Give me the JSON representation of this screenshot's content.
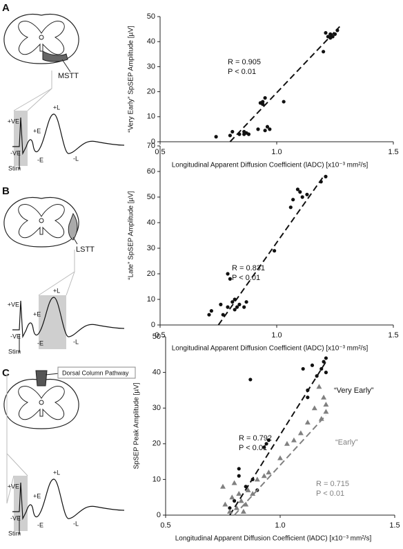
{
  "panels": [
    {
      "letter": "A",
      "diagram": {
        "tract": "MSTT",
        "labels": [
          "+VE",
          "+E",
          "-VE",
          "-E",
          "+L",
          "-L",
          "Stim"
        ]
      }
    },
    {
      "letter": "B",
      "diagram": {
        "tract": "LSTT",
        "labels": [
          "+VE",
          "+E",
          "-VE",
          "-E",
          "+L",
          "-L",
          "Stim"
        ]
      }
    },
    {
      "letter": "C",
      "diagram": {
        "tract": "Dorsal Column Pathway",
        "labels": [
          "+VE",
          "+E",
          "-VE",
          "-E",
          "+L",
          "-L",
          "Stim"
        ]
      }
    }
  ],
  "chart_data": [
    {
      "type": "scatter",
      "x_label": "Longitudinal Apparent Diffusion Coefficient (lADC) [x10⁻³ mm²/s]",
      "y_label": "“Very Early” SpSEP Amplitude [µV]",
      "xlim": [
        0.5,
        1.5
      ],
      "xticks": [
        0.5,
        {
          "value": 1,
          "label": "1.0"
        },
        1.5
      ],
      "ylim": [
        0,
        50
      ],
      "yticks": [
        0,
        10,
        20,
        30,
        40,
        50
      ],
      "annotations": [
        "R = 0.905",
        "P < 0.01"
      ],
      "series": [
        {
          "color": "#111111",
          "marker": "circle",
          "x": [
            0.74,
            0.8,
            0.81,
            0.84,
            0.86,
            0.86,
            0.87,
            0.88,
            0.92,
            0.93,
            0.94,
            0.94,
            0.95,
            0.95,
            0.96,
            0.97,
            1.03,
            1.2,
            1.21,
            1.22,
            1.23,
            1.24,
            1.25,
            1.26,
            1.23
          ],
          "values": [
            2,
            2.5,
            4,
            3,
            4,
            3,
            3.5,
            3,
            5,
            15.5,
            16,
            15,
            17.5,
            4.5,
            6,
            5,
            16,
            36,
            43.5,
            42,
            43,
            42,
            43,
            44.5,
            41.5
          ],
          "fit_x": [
            0.8,
            1.27
          ],
          "fit_y": [
            0,
            46
          ]
        }
      ]
    },
    {
      "type": "scatter",
      "x_label": "Longitudinal Apparent Diffusion Coefficient (lADC) [x10⁻³ mm²/s]",
      "y_label": "“Late” SpSEP Amplitude [µV]",
      "xlim": [
        0.5,
        1.5
      ],
      "xticks": [
        0.5,
        {
          "value": 1,
          "label": "1.0"
        },
        1.5
      ],
      "ylim": [
        0,
        70
      ],
      "yticks": [
        0,
        10,
        20,
        30,
        40,
        50,
        60,
        70
      ],
      "annotations": [
        "R = 0.831",
        "P < 0.01"
      ],
      "series": [
        {
          "color": "#111111",
          "marker": "circle",
          "x": [
            0.71,
            0.72,
            0.76,
            0.77,
            0.79,
            0.79,
            0.8,
            0.81,
            0.82,
            0.82,
            0.83,
            0.84,
            0.86,
            0.87,
            0.99,
            1.06,
            1.07,
            1.09,
            1.1,
            1.11,
            1.13,
            1.19,
            1.21
          ],
          "values": [
            4,
            5.5,
            8,
            4,
            7,
            20,
            18,
            9,
            10,
            6,
            7,
            8,
            7,
            9,
            29,
            46,
            49,
            53,
            52,
            50,
            51,
            56,
            58
          ],
          "fit_x": [
            0.75,
            1.2
          ],
          "fit_y": [
            0,
            58
          ]
        }
      ]
    },
    {
      "type": "scatter",
      "x_label": "Longitudinal Apparent Diffusion Coefficient (lADC) [x10⁻³ mm²/s]",
      "y_label": "SpSEP Peak Amplitude [µV]",
      "xlim": [
        0.5,
        1.5
      ],
      "xticks": [
        0.5,
        {
          "value": 1,
          "label": "1.0"
        },
        1.5
      ],
      "ylim": [
        0,
        50
      ],
      "yticks": [
        0,
        10,
        20,
        30,
        40,
        50
      ],
      "series": [
        {
          "name": "“Very Early”",
          "color": "#111111",
          "marker": "circle",
          "annotations": [
            "R = 0.792",
            "P < 0.01"
          ],
          "x": [
            0.78,
            0.8,
            0.82,
            0.82,
            0.85,
            0.87,
            0.88,
            0.9,
            0.93,
            0.94,
            0.95,
            1.1,
            1.12,
            1.12,
            1.14,
            1.16,
            1.18,
            1.19,
            1.2,
            1.2
          ],
          "values": [
            2,
            4,
            11,
            13,
            8,
            38,
            10,
            7,
            19,
            20,
            21,
            41,
            35,
            33,
            42,
            39,
            41,
            43,
            40,
            44
          ],
          "fit_x": [
            0.78,
            1.2
          ],
          "fit_y": [
            0,
            43
          ]
        },
        {
          "name": "“Early”",
          "color": "#808080",
          "marker": "triangle",
          "annotations": [
            "R = 0.715",
            "P < 0.01"
          ],
          "x": [
            0.75,
            0.76,
            0.78,
            0.79,
            0.8,
            0.81,
            0.82,
            0.83,
            0.84,
            0.85,
            0.86,
            0.88,
            0.9,
            0.93,
            0.95,
            1.0,
            1.03,
            1.06,
            1.09,
            1.12,
            1.15,
            1.17,
            1.18,
            1.19,
            1.2,
            1.2
          ],
          "values": [
            8,
            3,
            1,
            5,
            9,
            2,
            6,
            4,
            1,
            3,
            7,
            6,
            10,
            11,
            12,
            16,
            20,
            21,
            23,
            26,
            30,
            36,
            27,
            33,
            29,
            31
          ],
          "fit_x": [
            0.8,
            1.2
          ],
          "fit_y": [
            0,
            28
          ]
        }
      ]
    }
  ]
}
